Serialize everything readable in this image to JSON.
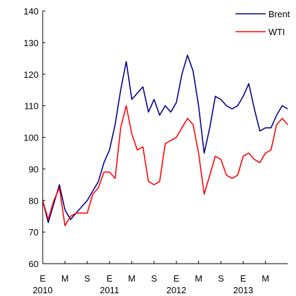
{
  "chart_data": {
    "type": "line",
    "title": "",
    "xlabel": "",
    "ylabel": "",
    "ylim": [
      60,
      140
    ],
    "yticks": [
      60,
      70,
      80,
      90,
      100,
      110,
      120,
      130,
      140
    ],
    "xlim": [
      "2010-01",
      "2013-09"
    ],
    "xtick_months": [
      {
        "label": "E",
        "date": "2010-01"
      },
      {
        "label": "M",
        "date": "2010-05"
      },
      {
        "label": "S",
        "date": "2010-09"
      },
      {
        "label": "E",
        "date": "2011-01"
      },
      {
        "label": "M",
        "date": "2011-05"
      },
      {
        "label": "S",
        "date": "2011-09"
      },
      {
        "label": "E",
        "date": "2012-01"
      },
      {
        "label": "M",
        "date": "2012-05"
      },
      {
        "label": "S",
        "date": "2012-09"
      },
      {
        "label": "E",
        "date": "2013-01"
      },
      {
        "label": "M",
        "date": "2013-05"
      }
    ],
    "xtick_years": [
      {
        "label": "2010",
        "date": "2010-01"
      },
      {
        "label": "2011",
        "date": "2011-01"
      },
      {
        "label": "2012",
        "date": "2012-01"
      },
      {
        "label": "2013",
        "date": "2013-01"
      }
    ],
    "grid": false,
    "legend_position": "top-right",
    "series": [
      {
        "name": "Brent",
        "color": "#00008B",
        "points": [
          [
            "2010-01",
            80
          ],
          [
            "2010-02",
            73
          ],
          [
            "2010-03",
            79
          ],
          [
            "2010-04",
            85
          ],
          [
            "2010-05",
            77
          ],
          [
            "2010-06",
            74
          ],
          [
            "2010-07",
            76
          ],
          [
            "2010-08",
            78
          ],
          [
            "2010-09",
            80
          ],
          [
            "2010-10",
            83
          ],
          [
            "2010-11",
            86
          ],
          [
            "2010-12",
            92
          ],
          [
            "2011-01",
            96
          ],
          [
            "2011-02",
            104
          ],
          [
            "2011-03",
            115
          ],
          [
            "2011-04",
            124
          ],
          [
            "2011-05",
            112
          ],
          [
            "2011-06",
            114
          ],
          [
            "2011-07",
            116
          ],
          [
            "2011-08",
            108
          ],
          [
            "2011-09",
            112
          ],
          [
            "2011-10",
            107
          ],
          [
            "2011-11",
            110
          ],
          [
            "2011-12",
            108
          ],
          [
            "2012-01",
            111
          ],
          [
            "2012-02",
            120
          ],
          [
            "2012-03",
            126
          ],
          [
            "2012-04",
            121
          ],
          [
            "2012-05",
            110
          ],
          [
            "2012-06",
            95
          ],
          [
            "2012-07",
            103
          ],
          [
            "2012-08",
            113
          ],
          [
            "2012-09",
            112
          ],
          [
            "2012-10",
            110
          ],
          [
            "2012-11",
            109
          ],
          [
            "2012-12",
            110
          ],
          [
            "2013-01",
            113
          ],
          [
            "2013-02",
            117
          ],
          [
            "2013-03",
            109
          ],
          [
            "2013-04",
            102
          ],
          [
            "2013-05",
            103
          ],
          [
            "2013-06",
            103
          ],
          [
            "2013-07",
            107
          ],
          [
            "2013-08",
            110
          ],
          [
            "2013-09",
            109
          ]
        ]
      },
      {
        "name": "WTI",
        "color": "#FF0000",
        "points": [
          [
            "2010-01",
            80
          ],
          [
            "2010-02",
            74
          ],
          [
            "2010-03",
            80
          ],
          [
            "2010-04",
            84
          ],
          [
            "2010-05",
            72
          ],
          [
            "2010-06",
            75
          ],
          [
            "2010-07",
            76
          ],
          [
            "2010-08",
            76
          ],
          [
            "2010-09",
            76
          ],
          [
            "2010-10",
            82
          ],
          [
            "2010-11",
            84
          ],
          [
            "2010-12",
            89
          ],
          [
            "2011-01",
            89
          ],
          [
            "2011-02",
            87
          ],
          [
            "2011-03",
            103
          ],
          [
            "2011-04",
            110
          ],
          [
            "2011-05",
            101
          ],
          [
            "2011-06",
            96
          ],
          [
            "2011-07",
            97
          ],
          [
            "2011-08",
            86
          ],
          [
            "2011-09",
            85
          ],
          [
            "2011-10",
            86
          ],
          [
            "2011-11",
            98
          ],
          [
            "2011-12",
            99
          ],
          [
            "2012-01",
            100
          ],
          [
            "2012-02",
            103
          ],
          [
            "2012-03",
            106
          ],
          [
            "2012-04",
            104
          ],
          [
            "2012-05",
            95
          ],
          [
            "2012-06",
            82
          ],
          [
            "2012-07",
            88
          ],
          [
            "2012-08",
            94
          ],
          [
            "2012-09",
            93
          ],
          [
            "2012-10",
            88
          ],
          [
            "2012-11",
            87
          ],
          [
            "2012-12",
            88
          ],
          [
            "2013-01",
            94
          ],
          [
            "2013-02",
            95
          ],
          [
            "2013-03",
            93
          ],
          [
            "2013-04",
            92
          ],
          [
            "2013-05",
            95
          ],
          [
            "2013-06",
            96
          ],
          [
            "2013-07",
            104
          ],
          [
            "2013-08",
            106
          ],
          [
            "2013-09",
            104
          ]
        ]
      }
    ]
  }
}
